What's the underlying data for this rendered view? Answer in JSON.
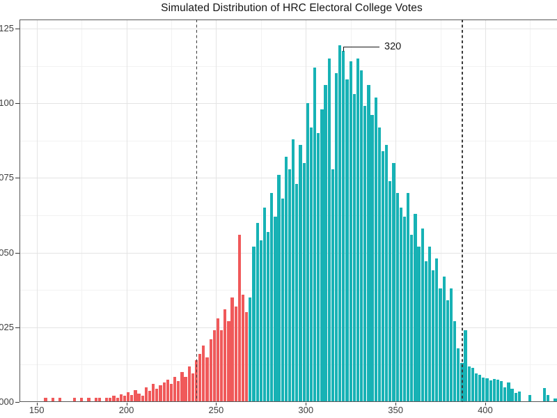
{
  "chart_data": {
    "type": "histogram",
    "title": "Simulated Distribution of HRC Electoral College Votes",
    "xlabel": "",
    "ylabel": "",
    "x_domain": [
      140,
      444
    ],
    "y_domain": [
      0,
      128
    ],
    "grid": "on",
    "legend": "none",
    "x_axis": {
      "tick_values": [
        150,
        200,
        250,
        300,
        350,
        400
      ],
      "tick_labels": [
        "150",
        "200",
        "250",
        "300",
        "350",
        "400"
      ],
      "minor_tick_values": [
        175,
        225,
        275,
        325,
        375,
        425
      ]
    },
    "y_axis": {
      "tick_values": [
        0,
        25,
        50,
        75,
        100,
        125
      ],
      "tick_labels": [
        "000",
        "025",
        "050",
        "075",
        "100",
        "125"
      ],
      "minor_tick_values": [
        12.5,
        37.5,
        62.5,
        87.5,
        112.5
      ],
      "note": "labels partially cut off at left image edge; units are density x 1e-4"
    },
    "bins": {
      "start": 150,
      "width": 2,
      "values": [
        0,
        0,
        1.3,
        0,
        1.3,
        0,
        1.3,
        0,
        0,
        0,
        1.3,
        0,
        1.3,
        0,
        1.3,
        0,
        1.3,
        1.3,
        0,
        1.3,
        1.3,
        2.2,
        1.3,
        2.6,
        2,
        3.3,
        2.4,
        4,
        2.8,
        2.2,
        5,
        3.8,
        6,
        4.4,
        5.5,
        6.5,
        7.5,
        6,
        8.5,
        7,
        10,
        8.5,
        12,
        9.5,
        14,
        16,
        19,
        15,
        21,
        24,
        28,
        24,
        31,
        27,
        35,
        32,
        56,
        36,
        30,
        35,
        52,
        60,
        54,
        65,
        57,
        70,
        62,
        76,
        68,
        82,
        78,
        88,
        73,
        86,
        80,
        100,
        92,
        112,
        90,
        98,
        106,
        115,
        78,
        110,
        119.5,
        117.5,
        108,
        114,
        103,
        115,
        111,
        99,
        106,
        96,
        102,
        92,
        84,
        86,
        74,
        80,
        70,
        65,
        62,
        70,
        56,
        63,
        52,
        58,
        47,
        52,
        44,
        48,
        38,
        42,
        34,
        38,
        27,
        18,
        13,
        24,
        12,
        11.5,
        9.5,
        9,
        8.2,
        8,
        7.2,
        7.8,
        7.5,
        7,
        5,
        6.5,
        4.5,
        3,
        3.5,
        0,
        0,
        2.3,
        0,
        0,
        0,
        4.7,
        2.3,
        0,
        1.2
      ]
    },
    "color_threshold": 269,
    "colors": {
      "below_threshold": "#F0595A",
      "above_threshold": "#17B2B5"
    },
    "vlines": {
      "values": [
        239,
        387
      ],
      "style": "dashed",
      "color": "#3b3b3b"
    },
    "annotation": {
      "label": "320",
      "value": 320
    }
  }
}
